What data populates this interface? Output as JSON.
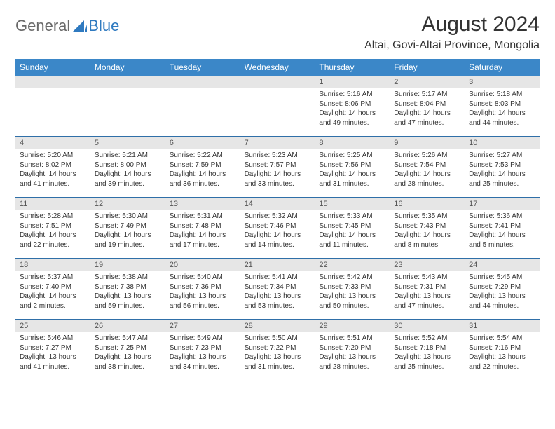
{
  "logo": {
    "text1": "General",
    "text2": "Blue"
  },
  "title": "August 2024",
  "location": "Altai, Govi-Altai Province, Mongolia",
  "colors": {
    "header_bg": "#3b87c8",
    "week_border": "#2f6fa8",
    "daynum_bg": "#e6e6e6",
    "logo_gray": "#6a6a6a",
    "logo_blue": "#2f7ac0"
  },
  "weekdays": [
    "Sunday",
    "Monday",
    "Tuesday",
    "Wednesday",
    "Thursday",
    "Friday",
    "Saturday"
  ],
  "weeks": [
    [
      {
        "n": "",
        "sr": "",
        "ss": "",
        "dl1": "",
        "dl2": ""
      },
      {
        "n": "",
        "sr": "",
        "ss": "",
        "dl1": "",
        "dl2": ""
      },
      {
        "n": "",
        "sr": "",
        "ss": "",
        "dl1": "",
        "dl2": ""
      },
      {
        "n": "",
        "sr": "",
        "ss": "",
        "dl1": "",
        "dl2": ""
      },
      {
        "n": "1",
        "sr": "Sunrise: 5:16 AM",
        "ss": "Sunset: 8:06 PM",
        "dl1": "Daylight: 14 hours",
        "dl2": "and 49 minutes."
      },
      {
        "n": "2",
        "sr": "Sunrise: 5:17 AM",
        "ss": "Sunset: 8:04 PM",
        "dl1": "Daylight: 14 hours",
        "dl2": "and 47 minutes."
      },
      {
        "n": "3",
        "sr": "Sunrise: 5:18 AM",
        "ss": "Sunset: 8:03 PM",
        "dl1": "Daylight: 14 hours",
        "dl2": "and 44 minutes."
      }
    ],
    [
      {
        "n": "4",
        "sr": "Sunrise: 5:20 AM",
        "ss": "Sunset: 8:02 PM",
        "dl1": "Daylight: 14 hours",
        "dl2": "and 41 minutes."
      },
      {
        "n": "5",
        "sr": "Sunrise: 5:21 AM",
        "ss": "Sunset: 8:00 PM",
        "dl1": "Daylight: 14 hours",
        "dl2": "and 39 minutes."
      },
      {
        "n": "6",
        "sr": "Sunrise: 5:22 AM",
        "ss": "Sunset: 7:59 PM",
        "dl1": "Daylight: 14 hours",
        "dl2": "and 36 minutes."
      },
      {
        "n": "7",
        "sr": "Sunrise: 5:23 AM",
        "ss": "Sunset: 7:57 PM",
        "dl1": "Daylight: 14 hours",
        "dl2": "and 33 minutes."
      },
      {
        "n": "8",
        "sr": "Sunrise: 5:25 AM",
        "ss": "Sunset: 7:56 PM",
        "dl1": "Daylight: 14 hours",
        "dl2": "and 31 minutes."
      },
      {
        "n": "9",
        "sr": "Sunrise: 5:26 AM",
        "ss": "Sunset: 7:54 PM",
        "dl1": "Daylight: 14 hours",
        "dl2": "and 28 minutes."
      },
      {
        "n": "10",
        "sr": "Sunrise: 5:27 AM",
        "ss": "Sunset: 7:53 PM",
        "dl1": "Daylight: 14 hours",
        "dl2": "and 25 minutes."
      }
    ],
    [
      {
        "n": "11",
        "sr": "Sunrise: 5:28 AM",
        "ss": "Sunset: 7:51 PM",
        "dl1": "Daylight: 14 hours",
        "dl2": "and 22 minutes."
      },
      {
        "n": "12",
        "sr": "Sunrise: 5:30 AM",
        "ss": "Sunset: 7:49 PM",
        "dl1": "Daylight: 14 hours",
        "dl2": "and 19 minutes."
      },
      {
        "n": "13",
        "sr": "Sunrise: 5:31 AM",
        "ss": "Sunset: 7:48 PM",
        "dl1": "Daylight: 14 hours",
        "dl2": "and 17 minutes."
      },
      {
        "n": "14",
        "sr": "Sunrise: 5:32 AM",
        "ss": "Sunset: 7:46 PM",
        "dl1": "Daylight: 14 hours",
        "dl2": "and 14 minutes."
      },
      {
        "n": "15",
        "sr": "Sunrise: 5:33 AM",
        "ss": "Sunset: 7:45 PM",
        "dl1": "Daylight: 14 hours",
        "dl2": "and 11 minutes."
      },
      {
        "n": "16",
        "sr": "Sunrise: 5:35 AM",
        "ss": "Sunset: 7:43 PM",
        "dl1": "Daylight: 14 hours",
        "dl2": "and 8 minutes."
      },
      {
        "n": "17",
        "sr": "Sunrise: 5:36 AM",
        "ss": "Sunset: 7:41 PM",
        "dl1": "Daylight: 14 hours",
        "dl2": "and 5 minutes."
      }
    ],
    [
      {
        "n": "18",
        "sr": "Sunrise: 5:37 AM",
        "ss": "Sunset: 7:40 PM",
        "dl1": "Daylight: 14 hours",
        "dl2": "and 2 minutes."
      },
      {
        "n": "19",
        "sr": "Sunrise: 5:38 AM",
        "ss": "Sunset: 7:38 PM",
        "dl1": "Daylight: 13 hours",
        "dl2": "and 59 minutes."
      },
      {
        "n": "20",
        "sr": "Sunrise: 5:40 AM",
        "ss": "Sunset: 7:36 PM",
        "dl1": "Daylight: 13 hours",
        "dl2": "and 56 minutes."
      },
      {
        "n": "21",
        "sr": "Sunrise: 5:41 AM",
        "ss": "Sunset: 7:34 PM",
        "dl1": "Daylight: 13 hours",
        "dl2": "and 53 minutes."
      },
      {
        "n": "22",
        "sr": "Sunrise: 5:42 AM",
        "ss": "Sunset: 7:33 PM",
        "dl1": "Daylight: 13 hours",
        "dl2": "and 50 minutes."
      },
      {
        "n": "23",
        "sr": "Sunrise: 5:43 AM",
        "ss": "Sunset: 7:31 PM",
        "dl1": "Daylight: 13 hours",
        "dl2": "and 47 minutes."
      },
      {
        "n": "24",
        "sr": "Sunrise: 5:45 AM",
        "ss": "Sunset: 7:29 PM",
        "dl1": "Daylight: 13 hours",
        "dl2": "and 44 minutes."
      }
    ],
    [
      {
        "n": "25",
        "sr": "Sunrise: 5:46 AM",
        "ss": "Sunset: 7:27 PM",
        "dl1": "Daylight: 13 hours",
        "dl2": "and 41 minutes."
      },
      {
        "n": "26",
        "sr": "Sunrise: 5:47 AM",
        "ss": "Sunset: 7:25 PM",
        "dl1": "Daylight: 13 hours",
        "dl2": "and 38 minutes."
      },
      {
        "n": "27",
        "sr": "Sunrise: 5:49 AM",
        "ss": "Sunset: 7:23 PM",
        "dl1": "Daylight: 13 hours",
        "dl2": "and 34 minutes."
      },
      {
        "n": "28",
        "sr": "Sunrise: 5:50 AM",
        "ss": "Sunset: 7:22 PM",
        "dl1": "Daylight: 13 hours",
        "dl2": "and 31 minutes."
      },
      {
        "n": "29",
        "sr": "Sunrise: 5:51 AM",
        "ss": "Sunset: 7:20 PM",
        "dl1": "Daylight: 13 hours",
        "dl2": "and 28 minutes."
      },
      {
        "n": "30",
        "sr": "Sunrise: 5:52 AM",
        "ss": "Sunset: 7:18 PM",
        "dl1": "Daylight: 13 hours",
        "dl2": "and 25 minutes."
      },
      {
        "n": "31",
        "sr": "Sunrise: 5:54 AM",
        "ss": "Sunset: 7:16 PM",
        "dl1": "Daylight: 13 hours",
        "dl2": "and 22 minutes."
      }
    ]
  ]
}
